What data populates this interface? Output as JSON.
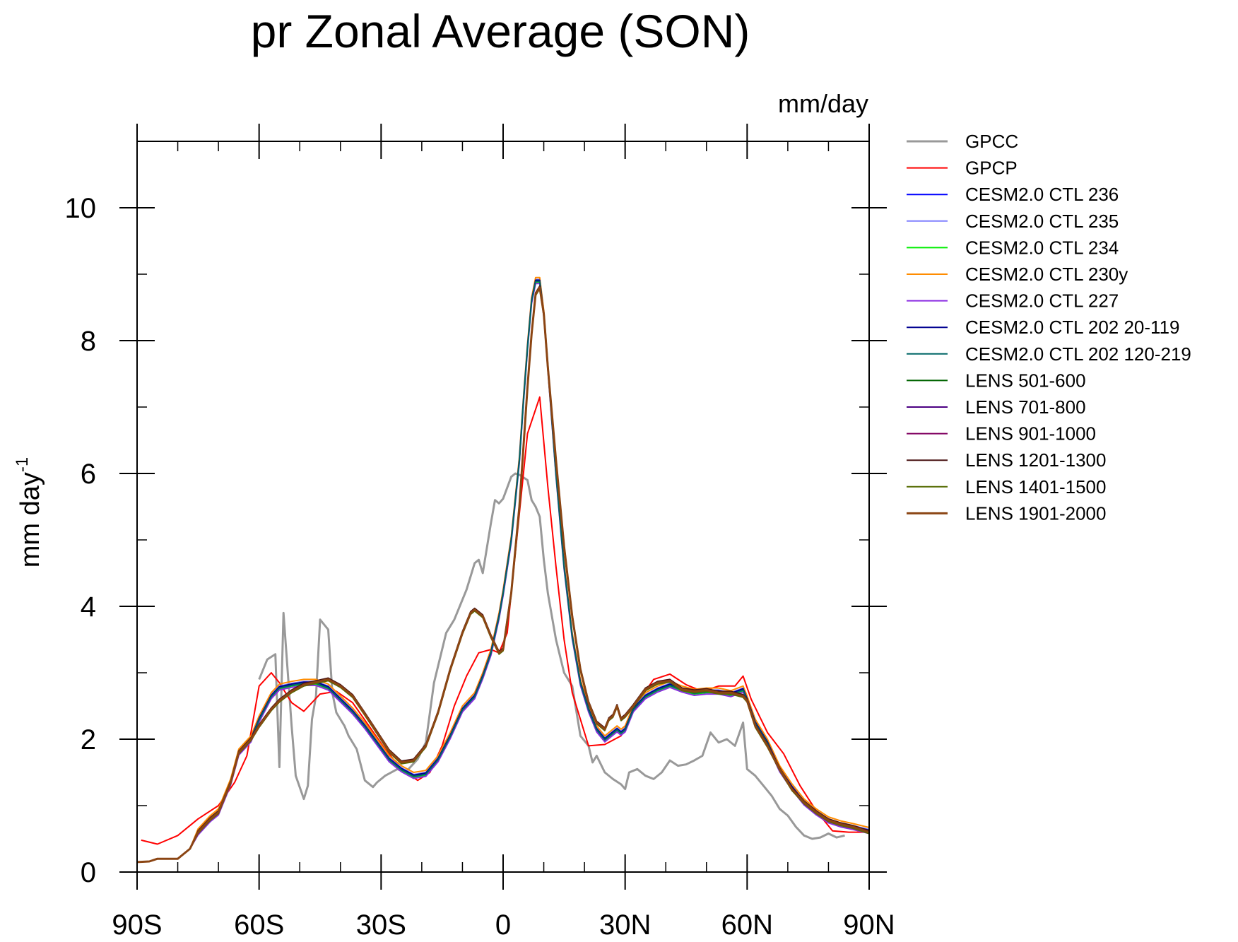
{
  "chart_data": {
    "type": "line",
    "title": "pr Zonal Average (SON)",
    "units_label": "mm/day",
    "ylabel": "mm day",
    "ylabel_superscript": "-1",
    "xlim": [
      -90,
      90
    ],
    "ylim": [
      0,
      11
    ],
    "xticks": [
      {
        "value": -90,
        "label": "90S"
      },
      {
        "value": -60,
        "label": "60S"
      },
      {
        "value": -30,
        "label": "30S"
      },
      {
        "value": 0,
        "label": "0"
      },
      {
        "value": 30,
        "label": "30N"
      },
      {
        "value": 60,
        "label": "60N"
      },
      {
        "value": 90,
        "label": "90N"
      }
    ],
    "yticks": [
      {
        "value": 0,
        "label": "0"
      },
      {
        "value": 2,
        "label": "2"
      },
      {
        "value": 4,
        "label": "4"
      },
      {
        "value": 6,
        "label": "6"
      },
      {
        "value": 8,
        "label": "8"
      },
      {
        "value": 10,
        "label": "10"
      }
    ],
    "x_minor_step": 10,
    "y_minor_step": 1,
    "legend_position": "right",
    "series": [
      {
        "name": "GPCC",
        "color": "#999999",
        "width": 3,
        "x": [
          -60,
          -58,
          -56,
          -55,
          -54,
          -52,
          -51,
          -49,
          -48,
          -47,
          -46,
          -45,
          -43,
          -42,
          -41,
          -39,
          -38,
          -36,
          -34,
          -32,
          -31,
          -29,
          -26,
          -24,
          -21,
          -19,
          -17,
          -14,
          -12,
          -9,
          -7,
          -6,
          -5,
          -3,
          -2,
          -1,
          0,
          2,
          3,
          4,
          6,
          7,
          8,
          9,
          10,
          11,
          13,
          15,
          17,
          19,
          21,
          22,
          23,
          25,
          27,
          29,
          30,
          31,
          33,
          35,
          37,
          39,
          41,
          43,
          45,
          47,
          49,
          51,
          53,
          55,
          57,
          59,
          60,
          62,
          64,
          66,
          68,
          70,
          72,
          74,
          76,
          78,
          80,
          82,
          84
        ],
        "values": [
          2.9,
          3.2,
          3.28,
          1.58,
          3.9,
          2.2,
          1.45,
          1.1,
          1.3,
          2.3,
          2.65,
          3.8,
          3.65,
          2.7,
          2.4,
          2.2,
          2.05,
          1.85,
          1.38,
          1.28,
          1.35,
          1.45,
          1.55,
          1.5,
          1.7,
          1.95,
          2.85,
          3.6,
          3.8,
          4.25,
          4.65,
          4.7,
          4.5,
          5.25,
          5.6,
          5.55,
          5.62,
          5.95,
          6.0,
          5.98,
          5.9,
          5.6,
          5.5,
          5.35,
          4.7,
          4.2,
          3.5,
          3.0,
          2.8,
          2.05,
          1.9,
          1.65,
          1.75,
          1.5,
          1.4,
          1.32,
          1.25,
          1.5,
          1.55,
          1.45,
          1.4,
          1.5,
          1.68,
          1.6,
          1.62,
          1.68,
          1.75,
          2.1,
          1.95,
          2.0,
          1.9,
          2.25,
          1.55,
          1.45,
          1.3,
          1.15,
          0.95,
          0.85,
          0.68,
          0.55,
          0.5,
          0.52,
          0.58,
          0.52,
          0.55
        ]
      },
      {
        "name": "GPCP",
        "color": "#ff0000",
        "width": 2,
        "x": [
          -89,
          -85,
          -80,
          -75,
          -70,
          -66,
          -63,
          -60,
          -57,
          -55,
          -52,
          -49,
          -45,
          -41,
          -37,
          -33,
          -29,
          -25,
          -21,
          -18,
          -15,
          -12,
          -9,
          -6,
          -3,
          -1,
          1,
          3,
          6,
          9,
          11,
          13,
          15,
          17,
          21,
          25,
          29,
          33,
          37,
          41,
          45,
          49,
          53,
          57,
          59,
          61,
          65,
          69,
          73,
          77,
          81,
          85,
          89
        ],
        "values": [
          0.48,
          0.42,
          0.55,
          0.8,
          1.0,
          1.35,
          1.75,
          2.8,
          3.0,
          2.85,
          2.55,
          2.42,
          2.68,
          2.72,
          2.55,
          2.2,
          1.85,
          1.55,
          1.38,
          1.5,
          1.9,
          2.5,
          2.95,
          3.3,
          3.35,
          3.3,
          3.6,
          4.8,
          6.6,
          7.15,
          5.8,
          4.6,
          3.5,
          2.7,
          1.9,
          1.92,
          2.05,
          2.55,
          2.9,
          2.98,
          2.82,
          2.72,
          2.8,
          2.8,
          2.95,
          2.6,
          2.1,
          1.78,
          1.3,
          0.92,
          0.62,
          0.6,
          0.6
        ]
      },
      {
        "name": "CESM2.0 CTL 236",
        "color": "#0000ff",
        "width": 2,
        "profile": "A",
        "offset": 0.0
      },
      {
        "name": "CESM2.0 CTL 235",
        "color": "#8080ff",
        "width": 2,
        "profile": "A",
        "offset": 0.02
      },
      {
        "name": "CESM2.0 CTL 234",
        "color": "#00ee00",
        "width": 2,
        "profile": "A",
        "offset": -0.02
      },
      {
        "name": "CESM2.0 CTL 230y",
        "color": "#ff8c00",
        "width": 2,
        "profile": "A",
        "offset": 0.05
      },
      {
        "name": "CESM2.0 CTL 227",
        "color": "#8a2be2",
        "width": 2,
        "profile": "A",
        "offset": -0.04
      },
      {
        "name": "CESM2.0 CTL 202 20-119",
        "color": "#000090",
        "width": 2,
        "profile": "A",
        "offset": 0.01
      },
      {
        "name": "CESM2.0 CTL 202 120-219",
        "color": "#006666",
        "width": 2,
        "profile": "A",
        "offset": -0.01
      },
      {
        "name": "LENS 501-600",
        "color": "#006400",
        "width": 2,
        "profile": "B",
        "offset": 0.0
      },
      {
        "name": "LENS 701-800",
        "color": "#4b0082",
        "width": 2,
        "profile": "B",
        "offset": 0.01
      },
      {
        "name": "LENS 901-1000",
        "color": "#800060",
        "width": 2,
        "profile": "B",
        "offset": -0.01
      },
      {
        "name": "LENS 1201-1300",
        "color": "#4a1414",
        "width": 2,
        "profile": "B",
        "offset": 0.02
      },
      {
        "name": "LENS 1401-1500",
        "color": "#556b00",
        "width": 2,
        "profile": "B",
        "offset": -0.02
      },
      {
        "name": "LENS 1901-2000",
        "color": "#8b4513",
        "width": 3,
        "profile": "B",
        "offset": 0.0
      }
    ],
    "profiles": {
      "A": {
        "x": [
          -90,
          -87,
          -85,
          -80,
          -77,
          -75,
          -72,
          -70,
          -67,
          -65,
          -62,
          -60,
          -57,
          -55,
          -52,
          -49,
          -46,
          -43,
          -40,
          -37,
          -34,
          -31,
          -28,
          -25,
          -22,
          -19,
          -16,
          -13,
          -10,
          -7,
          -5,
          -3,
          -1,
          0,
          2,
          4,
          5,
          6,
          7,
          8,
          9,
          10,
          11,
          13,
          15,
          17,
          19,
          21,
          23,
          25,
          26,
          27,
          28,
          29,
          30,
          32,
          35,
          38,
          41,
          44,
          47,
          50,
          53,
          56,
          59,
          60,
          62,
          65,
          68,
          71,
          74,
          77,
          80,
          83,
          86,
          90
        ],
        "values": [
          0.15,
          0.16,
          0.2,
          0.2,
          0.35,
          0.6,
          0.8,
          0.9,
          1.35,
          1.8,
          2.0,
          2.3,
          2.65,
          2.78,
          2.82,
          2.85,
          2.85,
          2.78,
          2.6,
          2.42,
          2.2,
          1.95,
          1.7,
          1.55,
          1.45,
          1.48,
          1.7,
          2.05,
          2.45,
          2.65,
          2.95,
          3.3,
          3.85,
          4.2,
          5.0,
          6.2,
          7.1,
          7.9,
          8.6,
          8.9,
          8.9,
          8.4,
          7.6,
          6.0,
          4.6,
          3.55,
          2.85,
          2.45,
          2.15,
          2.0,
          2.05,
          2.1,
          2.15,
          2.1,
          2.15,
          2.45,
          2.65,
          2.75,
          2.82,
          2.75,
          2.7,
          2.72,
          2.72,
          2.68,
          2.75,
          2.6,
          2.25,
          1.95,
          1.55,
          1.28,
          1.05,
          0.9,
          0.78,
          0.72,
          0.68,
          0.62
        ]
      },
      "B": {
        "x": [
          -90,
          -87,
          -85,
          -80,
          -77,
          -75,
          -72,
          -70,
          -67,
          -65,
          -62,
          -60,
          -57,
          -55,
          -52,
          -49,
          -46,
          -43,
          -40,
          -37,
          -34,
          -31,
          -28,
          -25,
          -22,
          -19,
          -16,
          -13,
          -10,
          -8,
          -7,
          -5,
          -3,
          -1,
          0,
          2,
          4,
          5,
          6,
          7,
          8,
          9,
          10,
          11,
          13,
          15,
          17,
          19,
          21,
          23,
          25,
          26,
          27,
          28,
          29,
          30,
          32,
          35,
          38,
          41,
          44,
          47,
          50,
          53,
          56,
          59,
          60,
          62,
          65,
          68,
          71,
          74,
          77,
          80,
          83,
          86,
          90
        ],
        "values": [
          0.15,
          0.16,
          0.2,
          0.2,
          0.35,
          0.6,
          0.8,
          0.9,
          1.35,
          1.8,
          2.0,
          2.2,
          2.45,
          2.58,
          2.72,
          2.82,
          2.86,
          2.9,
          2.8,
          2.65,
          2.38,
          2.1,
          1.82,
          1.65,
          1.68,
          1.9,
          2.4,
          3.05,
          3.6,
          3.9,
          3.95,
          3.85,
          3.55,
          3.3,
          3.35,
          4.2,
          5.5,
          6.4,
          7.3,
          8.1,
          8.7,
          8.8,
          8.4,
          7.6,
          6.2,
          4.9,
          3.85,
          3.05,
          2.55,
          2.25,
          2.15,
          2.3,
          2.35,
          2.5,
          2.3,
          2.35,
          2.5,
          2.75,
          2.85,
          2.88,
          2.75,
          2.72,
          2.74,
          2.7,
          2.7,
          2.65,
          2.58,
          2.2,
          1.9,
          1.55,
          1.25,
          1.05,
          0.9,
          0.78,
          0.72,
          0.68,
          0.6
        ]
      }
    }
  }
}
